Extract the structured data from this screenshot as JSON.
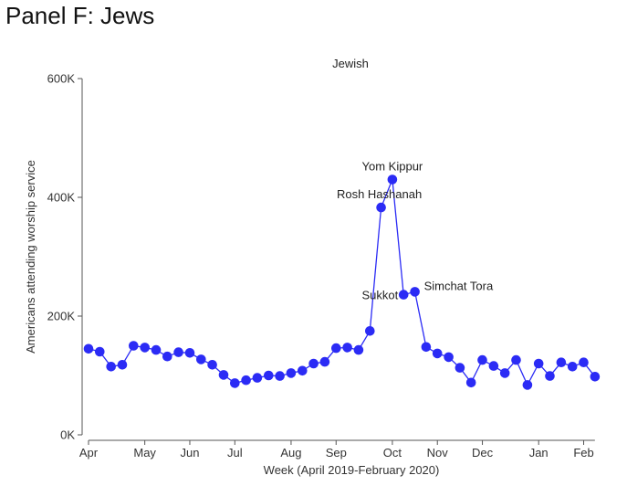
{
  "panel_title": "Panel F: Jews",
  "chart_data": {
    "type": "line",
    "title": "Jewish",
    "xlabel": "Week (April 2019-February 2020)",
    "ylabel": "Americans attending  worship service",
    "ylim": [
      0,
      600000
    ],
    "yticks": [
      {
        "value": 0,
        "label": "0K"
      },
      {
        "value": 200000,
        "label": "200K"
      },
      {
        "value": 400000,
        "label": "400K"
      },
      {
        "value": 600000,
        "label": "600K"
      }
    ],
    "xticks": [
      {
        "week": 0,
        "label": "Apr"
      },
      {
        "week": 5,
        "label": "May"
      },
      {
        "week": 9,
        "label": "Jun"
      },
      {
        "week": 13,
        "label": "Jul"
      },
      {
        "week": 18,
        "label": "Aug"
      },
      {
        "week": 22,
        "label": "Sep"
      },
      {
        "week": 27,
        "label": "Oct"
      },
      {
        "week": 31,
        "label": "Nov"
      },
      {
        "week": 35,
        "label": "Dec"
      },
      {
        "week": 40,
        "label": "Jan"
      },
      {
        "week": 44,
        "label": "Feb"
      }
    ],
    "series": [
      {
        "name": "Jewish",
        "color": "#2b2bf5",
        "x": [
          0,
          1,
          2,
          3,
          4,
          5,
          6,
          7,
          8,
          9,
          10,
          11,
          12,
          13,
          14,
          15,
          16,
          17,
          18,
          19,
          20,
          21,
          22,
          23,
          24,
          25,
          26,
          27,
          28,
          29,
          30,
          31,
          32,
          33,
          34,
          35,
          36,
          37,
          38,
          39,
          40,
          41,
          42,
          43,
          44,
          45
        ],
        "values": [
          145000,
          140000,
          115000,
          118000,
          150000,
          147000,
          143000,
          132000,
          139000,
          138000,
          127000,
          118000,
          101000,
          87000,
          92000,
          96000,
          100000,
          99000,
          104000,
          108000,
          120000,
          123000,
          146000,
          147000,
          143000,
          175000,
          383000,
          430000,
          236000,
          241000,
          148000,
          137000,
          131000,
          113000,
          88000,
          126000,
          116000,
          104000,
          126000,
          84000,
          120000,
          99000,
          122000,
          115000,
          122000,
          98000
        ]
      }
    ],
    "annotations": [
      {
        "text": "Yom Kippur",
        "week": 27,
        "value": 430000
      },
      {
        "text": "Rosh Hashanah",
        "week": 26,
        "value": 383000
      },
      {
        "text": "Sukkot",
        "week": 28,
        "value": 236000
      },
      {
        "text": "Simchat Tora",
        "week": 29,
        "value": 241000
      }
    ]
  }
}
